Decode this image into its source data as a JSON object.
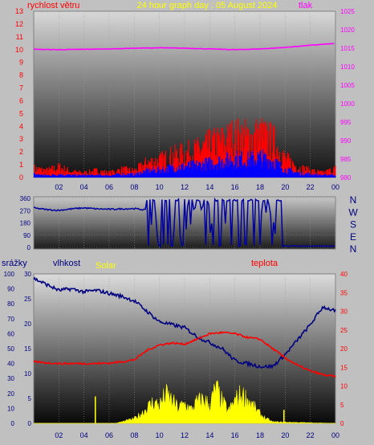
{
  "colors": {
    "background": "#c0c0c0",
    "wind": "#ff0000",
    "wind_gust": "#0000ff",
    "pressure": "#ff00ff",
    "direction": "#0000a0",
    "humidity": "#000080",
    "temperature": "#ff0000",
    "solar": "#ffff00",
    "rain": "#ffff00",
    "title": "#ffff00"
  },
  "labels": {
    "title": "24 hour graph day : 05 August 2024",
    "wind_label": "rychlost větru",
    "pressure_label": "tlak",
    "rain_label": "srážky",
    "humidity_label": "vlhkost",
    "solar_label": "Solar",
    "temperature_label": "teplota",
    "compass": [
      "N",
      "W",
      "S",
      "E",
      "N"
    ]
  },
  "chart_data": [
    {
      "type": "line",
      "panel": "wind-pressure",
      "xlabel": "",
      "x_ticks": [
        "02",
        "04",
        "06",
        "08",
        "10",
        "12",
        "14",
        "16",
        "18",
        "20",
        "22",
        "00"
      ],
      "x_range": [
        0,
        24
      ],
      "y_left": {
        "label": "rychlost větru",
        "ticks": [
          "0",
          "1",
          "2",
          "3",
          "4",
          "5",
          "6",
          "7",
          "8",
          "9",
          "10",
          "11",
          "12",
          "13"
        ],
        "range": [
          0,
          13
        ]
      },
      "y_right": {
        "label": "tlak",
        "ticks": [
          "980",
          "985",
          "990",
          "995",
          "1000",
          "1005",
          "1010",
          "1015",
          "1020",
          "1025"
        ],
        "range": [
          980,
          1025
        ]
      },
      "series": [
        {
          "name": "rychlost větru",
          "axis": "left",
          "color": "#ff0000",
          "x": [
            0,
            1,
            2,
            3,
            4,
            5,
            6,
            7,
            8,
            9,
            10,
            11,
            12,
            13,
            14,
            15,
            16,
            17,
            18,
            19,
            20,
            21,
            22,
            23,
            24
          ],
          "y": [
            0.8,
            0.6,
            0.9,
            0.5,
            0.4,
            0.6,
            0.4,
            0.7,
            0.6,
            1.3,
            1.5,
            1.9,
            2.1,
            2.4,
            2.9,
            3.2,
            3.6,
            3.5,
            3.7,
            3.2,
            1.6,
            0.9,
            0.6,
            0.4,
            0.8
          ]
        },
        {
          "name": "",
          "axis": "left",
          "color": "#0000ff",
          "x": [
            0,
            1,
            2,
            3,
            4,
            5,
            6,
            7,
            8,
            9,
            10,
            11,
            12,
            13,
            14,
            15,
            16,
            17,
            18,
            19,
            20,
            21,
            22,
            23,
            24
          ],
          "y": [
            0.3,
            0.2,
            0.3,
            0.2,
            0.2,
            0.2,
            0.2,
            0.3,
            0.3,
            0.6,
            0.7,
            0.9,
            1.0,
            1.1,
            1.3,
            1.5,
            1.7,
            1.6,
            1.8,
            1.5,
            0.7,
            0.4,
            0.3,
            0.2,
            0.3
          ]
        },
        {
          "name": "tlak",
          "axis": "right",
          "color": "#ff00ff",
          "x": [
            0,
            2,
            4,
            6,
            8,
            10,
            12,
            14,
            16,
            18,
            20,
            22,
            24
          ],
          "y": [
            1014.7,
            1014.6,
            1014.7,
            1014.8,
            1015.0,
            1015.1,
            1015.0,
            1014.8,
            1014.6,
            1014.8,
            1015.2,
            1015.8,
            1016.3
          ]
        }
      ]
    },
    {
      "type": "line",
      "panel": "wind-direction",
      "x_ticks": [
        "02",
        "04",
        "06",
        "08",
        "10",
        "12",
        "14",
        "16",
        "18",
        "20",
        "22",
        "00"
      ],
      "x_range": [
        0,
        24
      ],
      "y_left": {
        "ticks": [
          "0",
          "90",
          "180",
          "270",
          "360"
        ],
        "range": [
          0,
          360
        ]
      },
      "y_right": {
        "ticks": [
          "N",
          "W",
          "S",
          "E",
          "N"
        ]
      },
      "series": [
        {
          "name": "",
          "color": "#0000a0",
          "x": [
            0,
            1,
            2,
            3,
            4,
            5,
            6,
            7,
            8,
            8.9,
            9.0,
            9.5,
            10,
            11,
            12,
            13,
            14,
            15,
            16,
            17,
            18,
            19,
            19.8,
            20,
            21,
            22,
            23,
            24
          ],
          "y": [
            290,
            278,
            272,
            283,
            290,
            283,
            280,
            283,
            285,
            275,
            10,
            250,
            330,
            120,
            320,
            40,
            330,
            150,
            300,
            60,
            320,
            40,
            330,
            12,
            10,
            11,
            10,
            12
          ]
        }
      ]
    },
    {
      "type": "line",
      "panel": "rain-humidity-solar-temperature",
      "x_ticks": [
        "02",
        "04",
        "06",
        "08",
        "10",
        "12",
        "14",
        "16",
        "18",
        "20",
        "22",
        "00"
      ],
      "x_range": [
        0,
        24
      ],
      "y_left_outer": {
        "label": "srážky",
        "ticks": [
          "0",
          "10",
          "20",
          "30",
          "40",
          "50",
          "60",
          "70",
          "80",
          "90",
          "100"
        ],
        "range": [
          0,
          100
        ]
      },
      "y_left_inner": {
        "label": "vlhkost",
        "ticks": [
          "0",
          "5",
          "10",
          "15",
          "20",
          "25",
          "30"
        ],
        "range": [
          0,
          30
        ]
      },
      "y_right": {
        "label": "teplota",
        "ticks": [
          "0",
          "5",
          "10",
          "15",
          "20",
          "25",
          "30",
          "35",
          "40"
        ],
        "range": [
          0,
          40
        ]
      },
      "series": [
        {
          "name": "vlhkost",
          "scale": "outer",
          "color": "#000080",
          "x": [
            0,
            1,
            2,
            3,
            4,
            5,
            6,
            7,
            8,
            9,
            10,
            11,
            12,
            13,
            14,
            15,
            16,
            17,
            18,
            19,
            20,
            21,
            22,
            23,
            24
          ],
          "y": [
            97,
            93,
            89,
            90,
            88,
            89,
            87,
            85,
            82,
            75,
            68,
            66,
            64,
            58,
            54,
            50,
            42,
            40,
            38,
            38,
            46,
            56,
            66,
            78,
            75
          ]
        },
        {
          "name": "teplota",
          "scale": "right",
          "color": "#ff0000",
          "x": [
            0,
            1,
            2,
            3,
            4,
            5,
            6,
            7,
            8,
            9,
            10,
            11,
            12,
            13,
            14,
            15,
            16,
            17,
            18,
            19,
            20,
            21,
            22,
            23,
            24
          ],
          "y": [
            16.5,
            16.2,
            16.0,
            16.0,
            16.0,
            16.0,
            16.1,
            16.5,
            17.0,
            19.5,
            21.0,
            21.5,
            21.2,
            22.5,
            24.0,
            24.3,
            24.0,
            23.0,
            22.5,
            20.0,
            17.5,
            15.5,
            14.0,
            13.0,
            12.5
          ]
        },
        {
          "name": "Solar",
          "scale": "outer",
          "color": "#ffff00",
          "x": [
            0,
            6.5,
            7.0,
            7.5,
            8.0,
            8.5,
            9.0,
            9.5,
            10.0,
            10.5,
            11.0,
            11.5,
            12.0,
            12.5,
            13.0,
            13.5,
            14.0,
            14.5,
            15.0,
            15.5,
            16.0,
            16.5,
            17.0,
            17.5,
            18.0,
            18.5,
            19.0,
            24
          ],
          "y": [
            0,
            0,
            1,
            2,
            3,
            6,
            10,
            14,
            12,
            19,
            15,
            10,
            13,
            9,
            14,
            16,
            12,
            23,
            14,
            8,
            15,
            19,
            16,
            11,
            6,
            3,
            1,
            0
          ]
        }
      ],
      "rain_bars": {
        "color": "#ffff00",
        "x": [
          4.9,
          19.9
        ],
        "y": [
          18,
          9
        ]
      }
    }
  ]
}
